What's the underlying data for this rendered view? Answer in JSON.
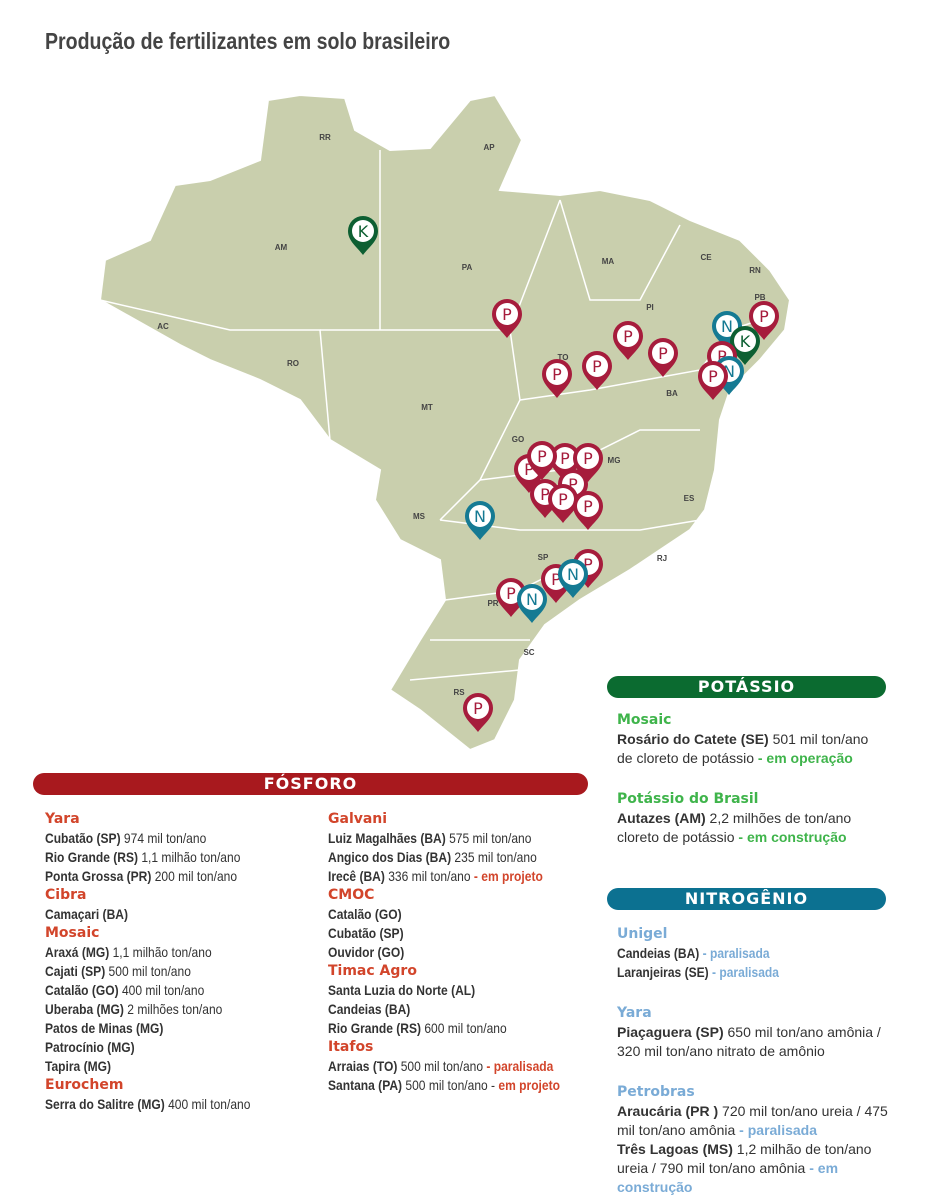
{
  "title": "Produção de fertilizantes em solo brasileiro",
  "colors": {
    "map_fill": "#c9cfad",
    "phosphorus": "#a61c3c",
    "nitrogen": "#157a93",
    "potassium": "#0d5f32",
    "fosforo_bar": "#a8191e",
    "potassio_bar": "#0b6b30",
    "nitrogenio_bar": "#0c7191",
    "fosforo_text": "#d2452b",
    "potassio_text": "#3fb44b",
    "nitrogenio_text": "#7aabd6"
  },
  "map": {
    "states": [
      "RR",
      "AP",
      "AM",
      "PA",
      "MA",
      "CE",
      "RN",
      "PB",
      "PI",
      "AC",
      "RO",
      "TO",
      "BA",
      "MT",
      "GO",
      "MG",
      "ES",
      "MS",
      "SP",
      "RJ",
      "PR",
      "SC",
      "RS"
    ],
    "marker_letters": {
      "phosphorus": "P",
      "nitrogen": "N",
      "potassium": "K"
    }
  },
  "sections": {
    "fosforo": {
      "label": "FÓSFORO",
      "columns": [
        [
          {
            "name": "Yara",
            "lines": [
              {
                "bold": "Cubatão (SP)",
                "text": " 974 mil ton/ano"
              },
              {
                "bold": "Rio Grande (RS)",
                "text": " 1,1 milhão ton/ano"
              },
              {
                "bold": "Ponta Grossa (PR)",
                "text": " 200 mil ton/ano"
              }
            ]
          },
          {
            "name": "Cibra",
            "lines": [
              {
                "bold": "Camaçari (BA)"
              }
            ]
          },
          {
            "name": "Mosaic",
            "lines": [
              {
                "bold": "Araxá (MG)",
                "text": " 1,1 milhão ton/ano"
              },
              {
                "bold": "Cajati (SP)",
                "text": " 500 mil ton/ano"
              },
              {
                "bold": "Catalão (GO)",
                "text": " 400 mil ton/ano"
              },
              {
                "bold": "Uberaba (MG)",
                "text": " 2 milhões ton/ano"
              },
              {
                "bold": "Patos de Minas (MG)"
              },
              {
                "bold": "Patrocínio (MG)"
              },
              {
                "bold": "Tapira (MG)"
              }
            ]
          },
          {
            "name": "Eurochem",
            "lines": [
              {
                "bold": "Serra do Salitre (MG)",
                "text": " 400 mil ton/ano"
              }
            ]
          }
        ],
        [
          {
            "name": "Galvani",
            "lines": [
              {
                "bold": "Luiz Magalhães (BA)",
                "text": " 575 mil ton/ano"
              },
              {
                "bold": "Angico dos Dias (BA)",
                "text": " 235 mil ton/ano"
              },
              {
                "bold": "Irecê (BA)",
                "text": " 336 mil ton/ano",
                "status": " - em projeto"
              }
            ]
          },
          {
            "name": "CMOC",
            "lines": [
              {
                "bold": "Catalão (GO)"
              },
              {
                "bold": "Cubatão (SP)"
              },
              {
                "bold": "Ouvidor (GO)"
              }
            ]
          },
          {
            "name": "Timac Agro",
            "lines": [
              {
                "bold": "Santa Luzia do Norte (AL)"
              },
              {
                "bold": "Candeias (BA)"
              },
              {
                "bold": "Rio Grande (RS)",
                "text": " 600 mil ton/ano"
              }
            ]
          },
          {
            "name": "Itafos",
            "lines": [
              {
                "bold": "Arraias (TO)",
                "text": " 500 mil ton/ano",
                "status": " - paralisada"
              },
              {
                "bold": "Santana (PA)",
                "text": " 500 mil ton/ano -",
                "status": " em projeto"
              }
            ]
          }
        ]
      ]
    },
    "potassio": {
      "label": "POTÁSSIO",
      "columns": [
        [
          {
            "name": "Mosaic",
            "lines": [
              {
                "bold": "Rosário do Catete (SE)",
                "text": " 501 mil ton/ano de cloreto de potássio",
                "status": " - em operação",
                "wrap": true
              }
            ]
          },
          {
            "name": "Potássio do Brasil",
            "lines": [
              {
                "bold": "Autazes (AM)",
                "text": " 2,2 milhões de ton/ano cloreto de potássio",
                "status": " - em construção",
                "wrap": true
              }
            ]
          }
        ]
      ]
    },
    "nitrogenio": {
      "label": "NITROGÊNIO",
      "columns": [
        [
          {
            "name": "Unigel",
            "lines": [
              {
                "bold": "Candeias (BA)",
                "status": " - paralisada"
              },
              {
                "bold": "Laranjeiras (SE)",
                "status": " - paralisada"
              }
            ]
          },
          {
            "name": "Yara",
            "lines": [
              {
                "bold": "Piaçaguera (SP)",
                "text": " 650 mil ton/ano amônia / 320 mil ton/ano nitrato de amônio",
                "wrap": true
              }
            ]
          },
          {
            "name": "Petrobras",
            "lines": [
              {
                "bold": "Araucária (PR )",
                "text": " 720 mil ton/ano ureia / 475 mil ton/ano amônia",
                "status": " - paralisada",
                "wrap": true
              },
              {
                "bold": "Três Lagoas (MS)",
                "text": " 1,2 milhão de ton/ano ureia / 790 mil ton/ano amônia",
                "status": " - em construção",
                "wrap": true
              }
            ]
          }
        ]
      ]
    }
  }
}
